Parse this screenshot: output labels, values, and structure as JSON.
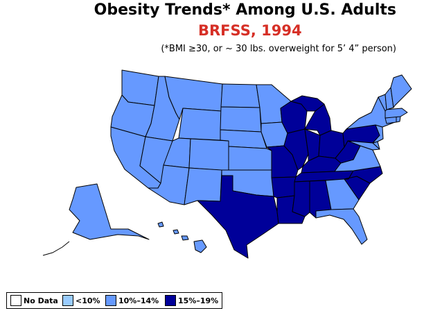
{
  "title": "Obesity Trends*  Among U.S. Adults",
  "subtitle": "BRFSS, 1994",
  "note": "(*BMI ≥30, or ~ 30 lbs. overweight for 5’ 4” person)",
  "legend": [
    {
      "label": "No Data",
      "color": "#ffffff"
    },
    {
      "label": "<10%",
      "color": "#99ccff"
    },
    {
      "label": "10%–14%",
      "color": "#6699ff"
    },
    {
      "label": "15%–19%",
      "color": "#000099"
    }
  ],
  "colors": {
    "outline": "#000000",
    "light": "#6699ff",
    "dark": "#000099"
  },
  "states": {
    "light": [
      "WA",
      "OR",
      "CA",
      "ID",
      "NV",
      "MT",
      "WY",
      "UT",
      "AZ",
      "CO",
      "NM",
      "ND",
      "SD",
      "NE",
      "KS",
      "OK",
      "MN",
      "IA",
      "GA",
      "FL",
      "VA",
      "DE",
      "MD",
      "NJ",
      "NY",
      "CT",
      "RI",
      "MA",
      "VT",
      "NH",
      "ME",
      "AK",
      "HI"
    ],
    "dark": [
      "TX",
      "MO",
      "AR",
      "LA",
      "WI",
      "IL",
      "MI",
      "IN",
      "OH",
      "KY",
      "TN",
      "MS",
      "AL",
      "SC",
      "NC",
      "WV",
      "PA"
    ]
  }
}
